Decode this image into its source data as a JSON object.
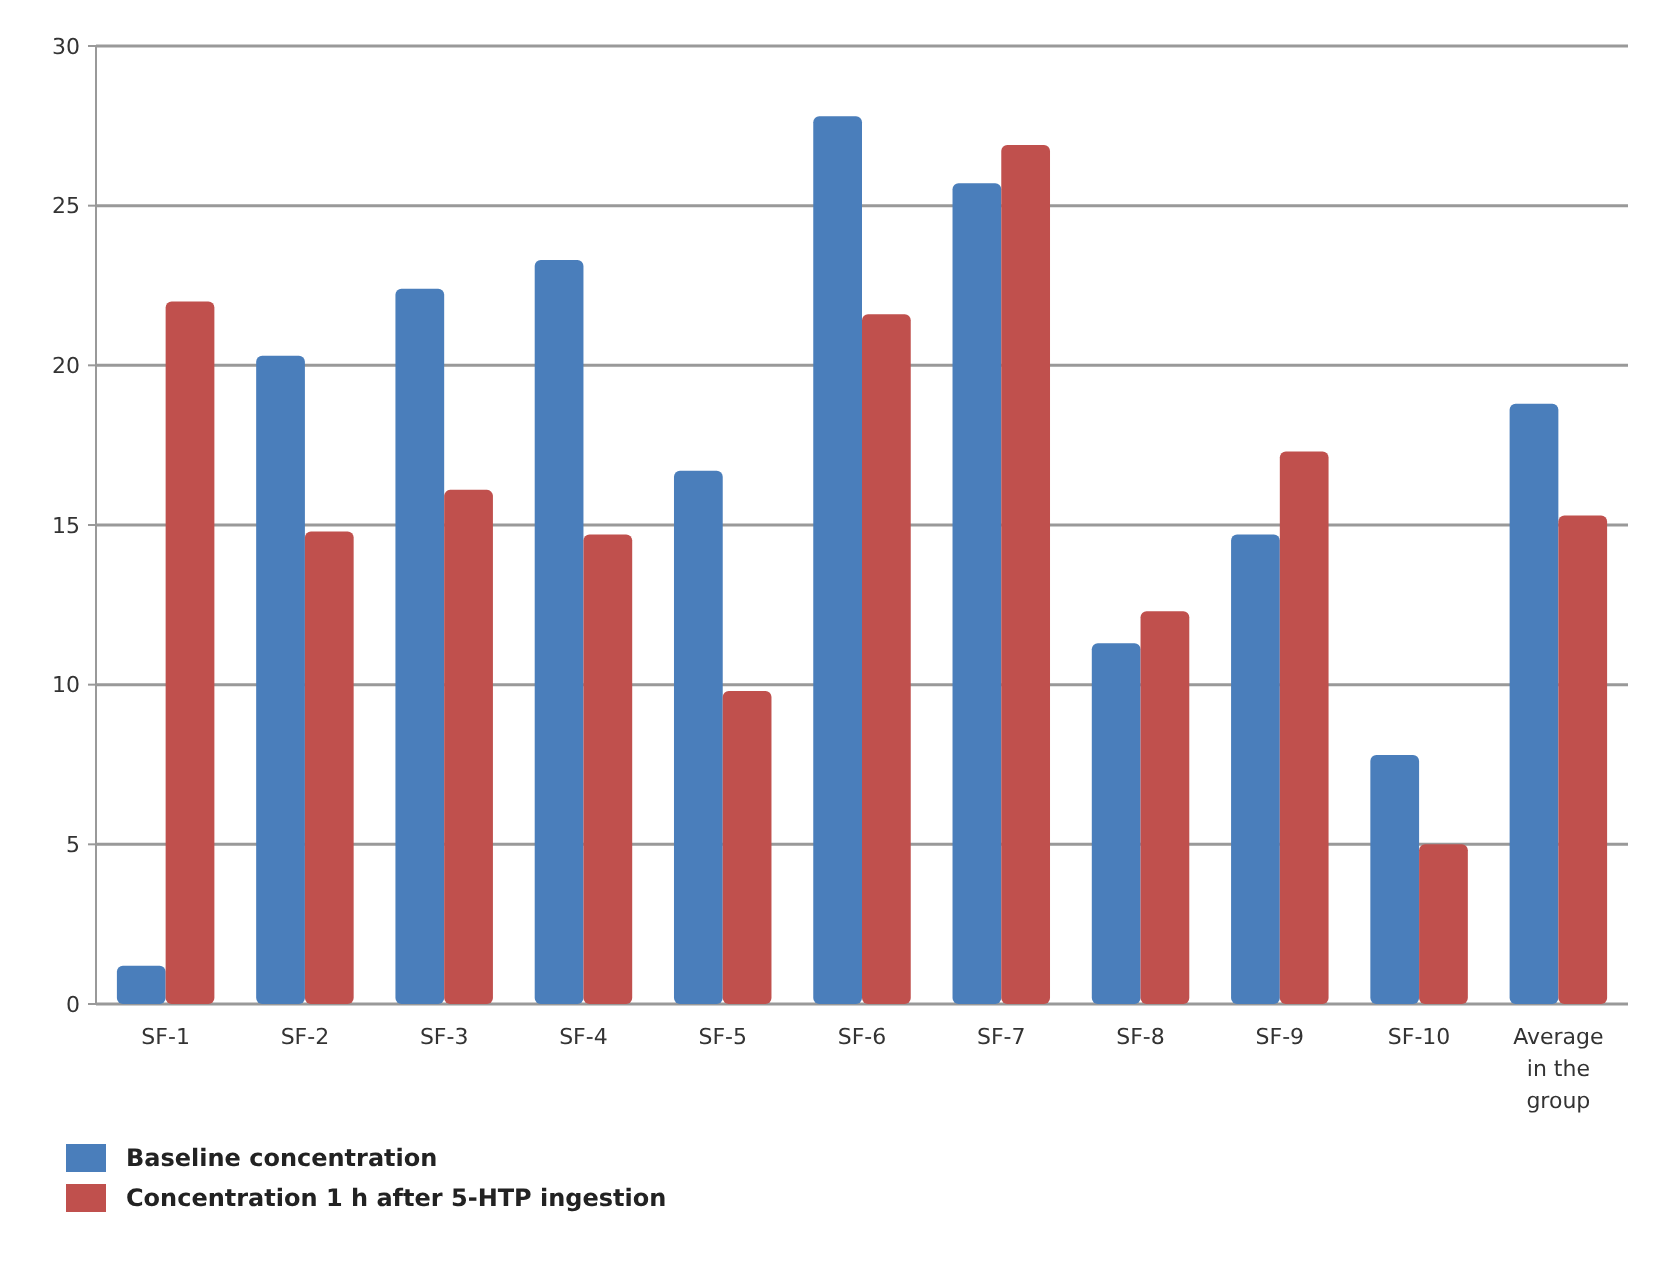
{
  "chart_data": {
    "type": "bar",
    "categories": [
      "SF-1",
      "SF-2",
      "SF-3",
      "SF-4",
      "SF-5",
      "SF-6",
      "SF-7",
      "SF-8",
      "SF-9",
      "SF-10",
      "Average in the group"
    ],
    "series": [
      {
        "name": "Baseline concentration",
        "color": "#4a7ebb",
        "values": [
          1.2,
          20.3,
          22.4,
          23.3,
          16.7,
          27.8,
          25.7,
          11.3,
          14.7,
          7.8,
          18.8
        ]
      },
      {
        "name": "Concentration 1 h after 5-HTP ingestion",
        "color": "#c0504d",
        "values": [
          22,
          14.8,
          16.1,
          14.7,
          9.8,
          21.6,
          26.9,
          12.3,
          17.3,
          5,
          15.3
        ]
      }
    ],
    "ylim": [
      0,
      30
    ],
    "yticks": [
      0,
      5,
      10,
      15,
      20,
      25,
      30
    ],
    "grid": "y",
    "legend": "bottom left"
  }
}
